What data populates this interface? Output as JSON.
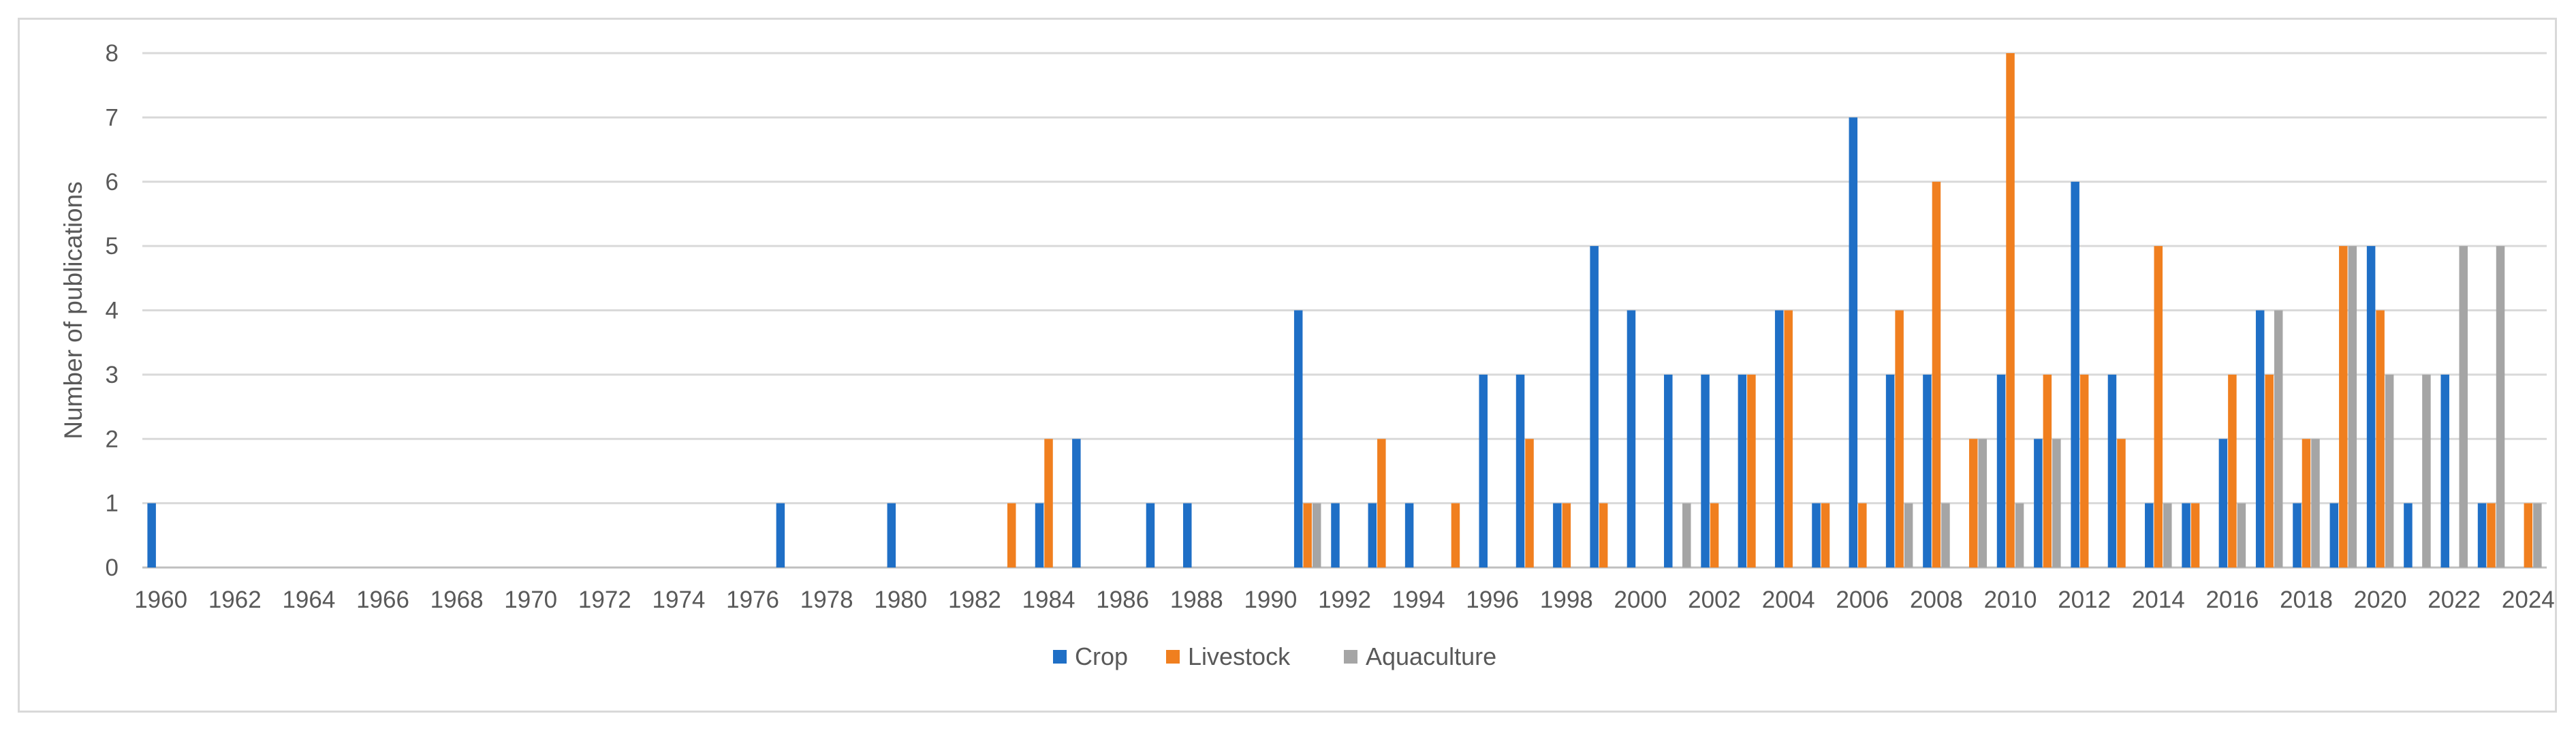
{
  "chart_data": {
    "type": "bar",
    "title": "",
    "xlabel": "",
    "ylabel": "Number of publications",
    "ylim": [
      0,
      8
    ],
    "yticks": [
      0,
      1,
      2,
      3,
      4,
      5,
      6,
      7,
      8
    ],
    "grid": true,
    "legend_position": "bottom",
    "categories": [
      "1960",
      "1961",
      "1962",
      "1963",
      "1964",
      "1965",
      "1966",
      "1967",
      "1968",
      "1969",
      "1970",
      "1971",
      "1972",
      "1973",
      "1974",
      "1975",
      "1976",
      "1977",
      "1978",
      "1979",
      "1980",
      "1981",
      "1982",
      "1983",
      "1984",
      "1985",
      "1986",
      "1987",
      "1988",
      "1989",
      "1990",
      "1991",
      "1992",
      "1993",
      "1994",
      "1995",
      "1996",
      "1997",
      "1998",
      "1999",
      "2000",
      "2001",
      "2002",
      "2003",
      "2004",
      "2005",
      "2006",
      "2007",
      "2008",
      "2009",
      "2010",
      "2011",
      "2012",
      "2013",
      "2014",
      "2015",
      "2016",
      "2017",
      "2018",
      "2019",
      "2020",
      "2021",
      "2022",
      "2023",
      "2024"
    ],
    "tick_labels": [
      "1960",
      "1962",
      "1964",
      "1966",
      "1968",
      "1970",
      "1972",
      "1974",
      "1976",
      "1978",
      "1980",
      "1982",
      "1984",
      "1986",
      "1988",
      "1990",
      "1992",
      "1994",
      "1996",
      "1998",
      "2000",
      "2002",
      "2004",
      "2006",
      "2008",
      "2010",
      "2012",
      "2014",
      "2016",
      "2018",
      "2020",
      "2022",
      "2024"
    ],
    "series": [
      {
        "name": "Crop",
        "color": "#1f6fc6",
        "values": [
          1,
          0,
          0,
          0,
          0,
          0,
          0,
          0,
          0,
          0,
          0,
          0,
          0,
          0,
          0,
          0,
          0,
          1,
          0,
          0,
          1,
          0,
          0,
          0,
          1,
          2,
          0,
          1,
          1,
          0,
          0,
          4,
          1,
          1,
          1,
          0,
          3,
          3,
          1,
          5,
          4,
          3,
          3,
          3,
          4,
          1,
          7,
          3,
          3,
          0,
          3,
          2,
          6,
          3,
          1,
          1,
          2,
          4,
          1,
          1,
          5,
          1,
          3,
          1,
          0
        ]
      },
      {
        "name": "Livestock",
        "color": "#f07f1f",
        "values": [
          0,
          0,
          0,
          0,
          0,
          0,
          0,
          0,
          0,
          0,
          0,
          0,
          0,
          0,
          0,
          0,
          0,
          0,
          0,
          0,
          0,
          0,
          0,
          1,
          2,
          0,
          0,
          0,
          0,
          0,
          0,
          1,
          0,
          2,
          0,
          1,
          0,
          2,
          1,
          1,
          0,
          0,
          1,
          3,
          4,
          1,
          1,
          4,
          6,
          2,
          8,
          3,
          3,
          2,
          5,
          1,
          3,
          3,
          2,
          5,
          4,
          0,
          0,
          1,
          1
        ]
      },
      {
        "name": "Aquaculture",
        "color": "#a5a5a5",
        "values": [
          0,
          0,
          0,
          0,
          0,
          0,
          0,
          0,
          0,
          0,
          0,
          0,
          0,
          0,
          0,
          0,
          0,
          0,
          0,
          0,
          0,
          0,
          0,
          0,
          0,
          0,
          0,
          0,
          0,
          0,
          0,
          1,
          0,
          0,
          0,
          0,
          0,
          0,
          0,
          0,
          0,
          1,
          0,
          0,
          0,
          0,
          0,
          1,
          1,
          2,
          1,
          2,
          0,
          0,
          1,
          0,
          1,
          4,
          2,
          5,
          3,
          3,
          5,
          5,
          1
        ]
      }
    ]
  }
}
